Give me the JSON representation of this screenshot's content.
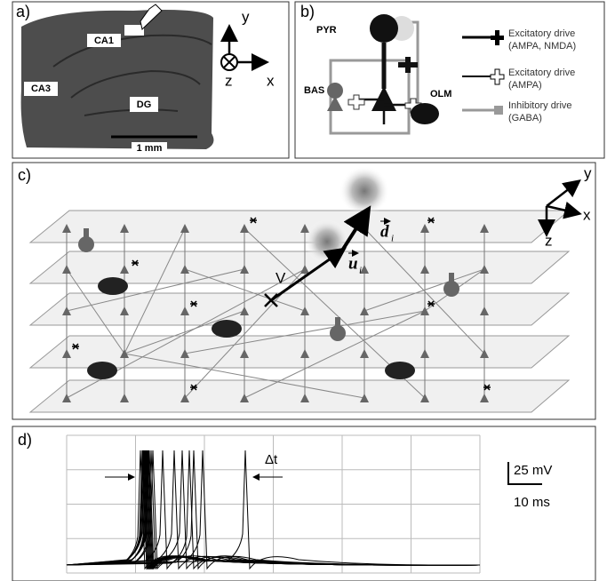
{
  "panel_a": {
    "label": "a)",
    "regions": [
      "CA1",
      "CA3",
      "DG"
    ],
    "scale_bar": "1 mm",
    "axes": {
      "y": "y",
      "z": "z",
      "x": "x"
    }
  },
  "panel_b": {
    "label": "b)",
    "cells": [
      "PYR",
      "BAS",
      "OLM"
    ],
    "legend": [
      [
        "Excitatory drive",
        "(AMPA, NMDA)"
      ],
      [
        "Excitatory drive",
        "(AMPA)"
      ],
      [
        "Inhibitory drive",
        "(GABA)"
      ]
    ]
  },
  "panel_c": {
    "label": "c)",
    "point": "V",
    "vectors": [
      {
        "symbol": "d",
        "subscript": "i"
      },
      {
        "symbol": "u",
        "subscript": "i"
      }
    ],
    "axes": {
      "y": "y",
      "x": "x",
      "z": "z"
    }
  },
  "panel_d": {
    "label": "d)",
    "interval": "Δt",
    "scale_v": "25 mV",
    "scale_t": "10 ms"
  }
}
